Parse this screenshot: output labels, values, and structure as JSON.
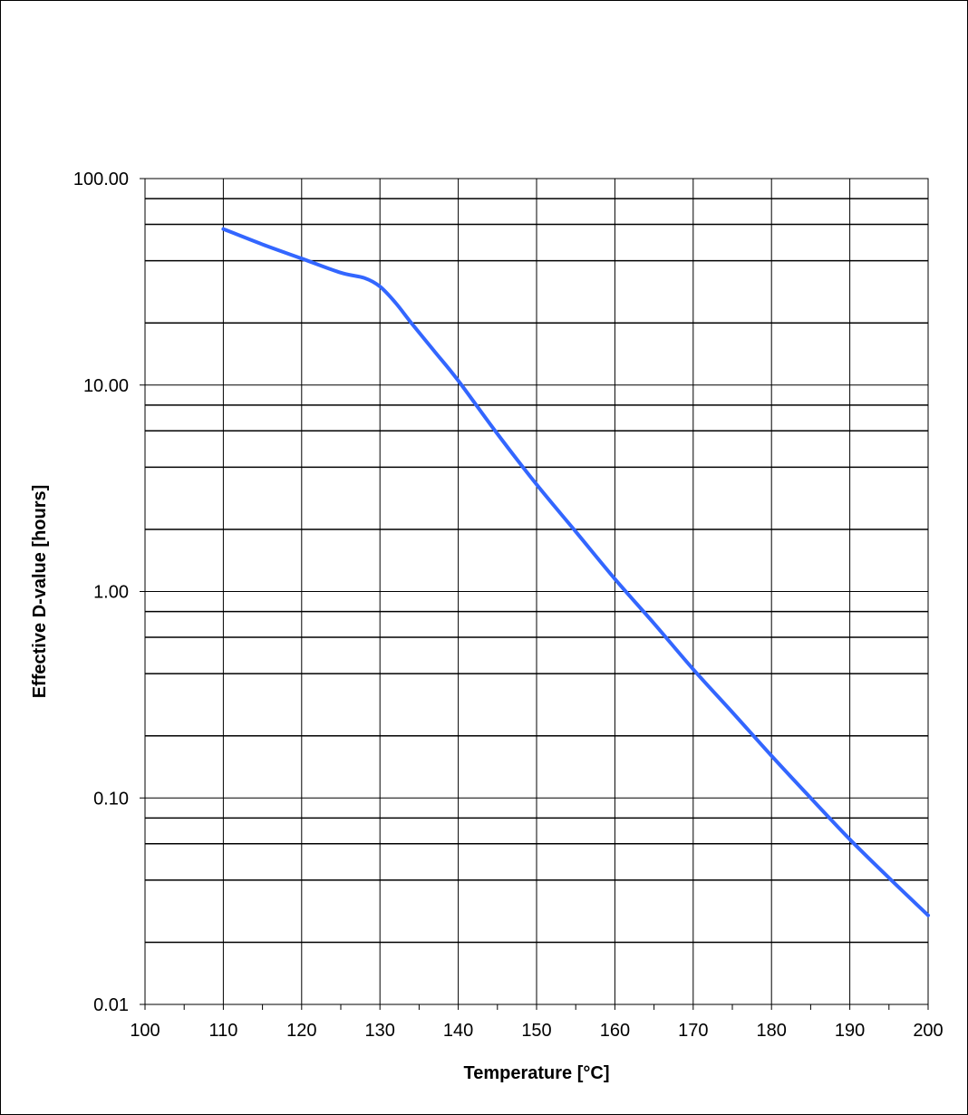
{
  "chart_data": {
    "type": "line",
    "title": "",
    "xlabel": "Temperature [°C]",
    "ylabel": "Effective D-value [hours]",
    "xlim": [
      100,
      200
    ],
    "ylim": [
      0.01,
      100
    ],
    "yscale": "log",
    "grid": "horizontal at 2,4,6,8 and decades; vertical every 10",
    "legend": "none",
    "line_color": "#3366ff",
    "x_ticks": [
      "100",
      "110",
      "120",
      "130",
      "140",
      "150",
      "160",
      "170",
      "180",
      "190",
      "200"
    ],
    "y_ticks": [
      "0.01",
      "0.10",
      "1.00",
      "10.00",
      "100.00"
    ],
    "series": [
      {
        "x": [
          110,
          115,
          120,
          125,
          128,
          130,
          132,
          134,
          137,
          140,
          145,
          150,
          155,
          160,
          165,
          170,
          175,
          180,
          185,
          190,
          195,
          200
        ],
        "y": [
          57,
          48,
          41,
          35,
          33,
          30,
          25,
          20,
          14.5,
          10.5,
          5.8,
          3.3,
          1.95,
          1.15,
          0.7,
          0.42,
          0.26,
          0.16,
          0.1,
          0.063,
          0.041,
          0.027
        ]
      }
    ]
  }
}
